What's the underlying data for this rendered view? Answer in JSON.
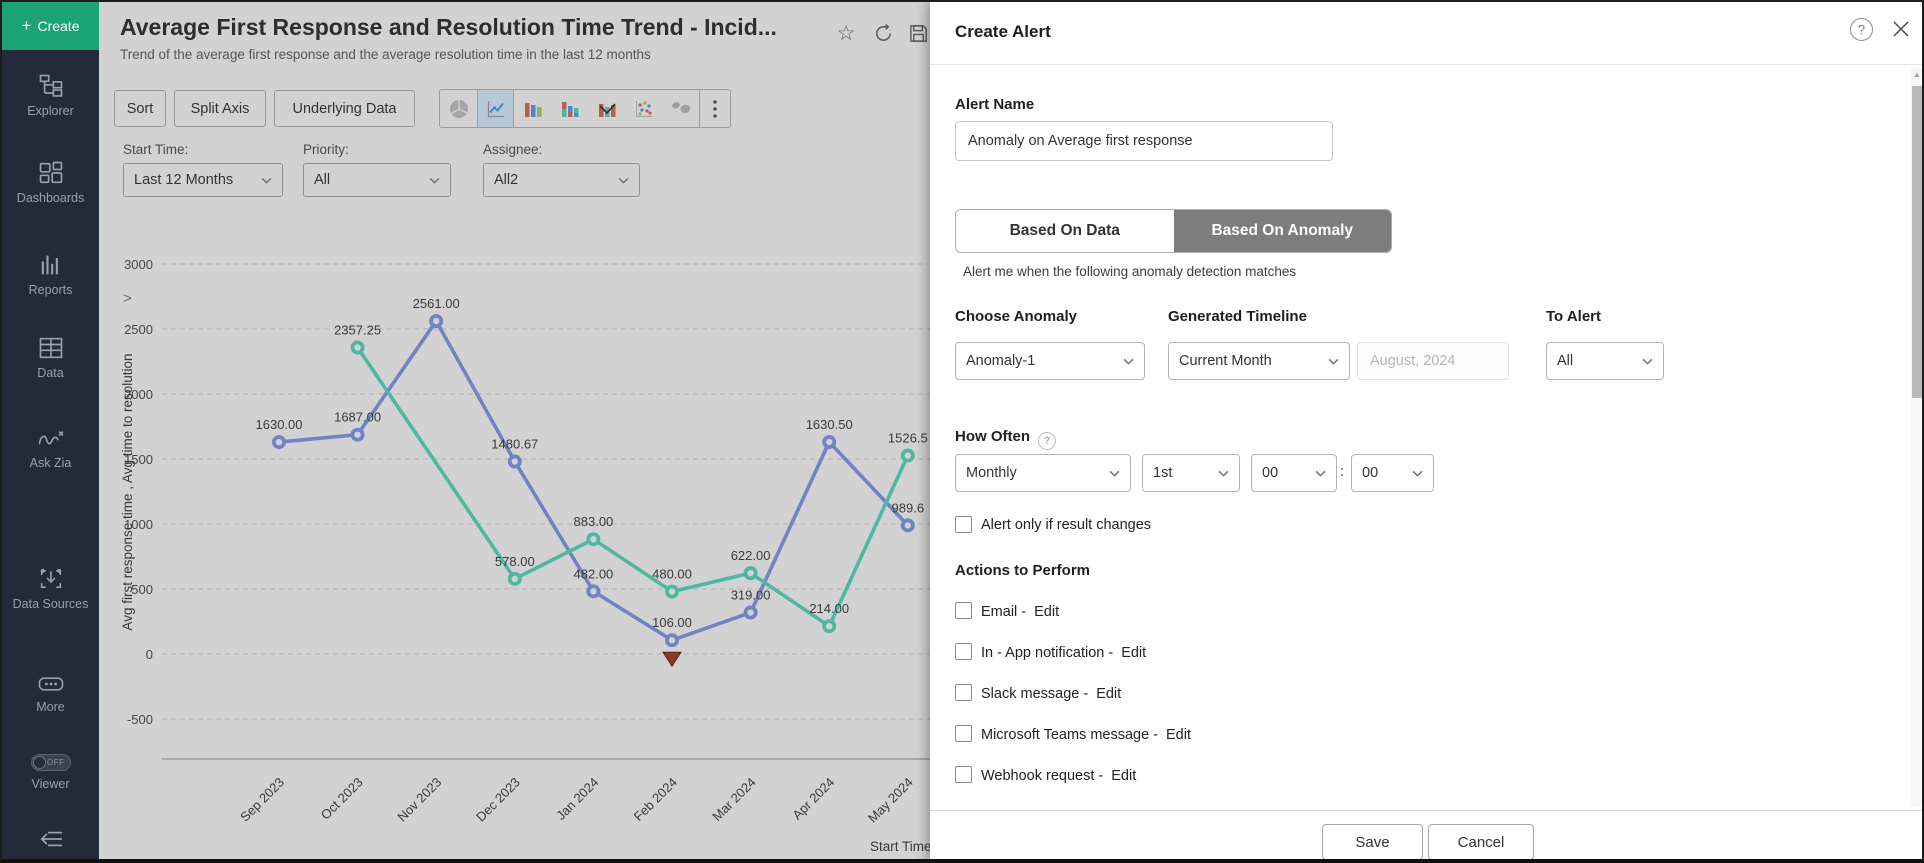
{
  "sidebar": {
    "create_label": "Create",
    "items": [
      {
        "label": "Explorer"
      },
      {
        "label": "Dashboards"
      },
      {
        "label": "Reports"
      },
      {
        "label": "Data"
      },
      {
        "label": "Ask Zia"
      },
      {
        "label": "Data Sources"
      },
      {
        "label": "More"
      }
    ],
    "viewer_label": "Viewer",
    "viewer_off": "OFF"
  },
  "report": {
    "title": "Average First Response and Resolution Time Trend - Incid...",
    "subtitle": "Trend of the average first response and the average resolution time in the last 12 months",
    "toolbar_buttons": [
      {
        "label": "Sort"
      },
      {
        "label": "Split Axis"
      },
      {
        "label": "Underlying Data"
      }
    ],
    "filters": [
      {
        "label": "Start Time:",
        "value": "Last 12 Months"
      },
      {
        "label": "Priority:",
        "value": "All"
      },
      {
        "label": "Assignee:",
        "value": "All2"
      }
    ],
    "expand_chevron": ">"
  },
  "chart_data": {
    "type": "line",
    "categories": [
      "Sep 2023",
      "Oct 2023",
      "Nov 2023",
      "Dec 2023",
      "Jan 2024",
      "Feb 2024",
      "Mar 2024",
      "Apr 2024",
      "May 2024"
    ],
    "series": [
      {
        "name": "Avg first response time",
        "color": "#6f83c5",
        "values": [
          1630.0,
          1687.0,
          2561.0,
          1480.67,
          482.0,
          106.0,
          319.0,
          1630.5,
          989.6
        ],
        "labels": [
          "1630.00",
          "1687.00",
          "2561.00",
          "1480.67",
          "482.00",
          "106.00",
          "319.00",
          "1630.50",
          "989.6"
        ]
      },
      {
        "name": "Avg time to resolution",
        "color": "#4fb8a0",
        "values": [
          null,
          2357.25,
          null,
          578.0,
          883.0,
          480.0,
          622.0,
          214.0,
          1526.5
        ],
        "labels": [
          "",
          "2357.25",
          "",
          "578.00",
          "883.00",
          "480.00",
          "622.00",
          "214.00",
          "1526.5"
        ]
      }
    ],
    "ylabel": "Avg first response time , Avg time to resolution",
    "xlabel": "Start Time",
    "ylim": [
      -500,
      3000
    ],
    "yticks": [
      3000,
      2500,
      2000,
      1500,
      1000,
      500,
      0,
      -500
    ],
    "grid": "dashed",
    "anomaly": {
      "category": "Feb 2024",
      "series": "Avg first response time",
      "color": "#8b3b1e"
    }
  },
  "modal": {
    "title": "Create Alert",
    "alert_name_label": "Alert Name",
    "alert_name_value": "Anomaly on Average first response",
    "tabs": [
      {
        "label": "Based On Data",
        "active": false
      },
      {
        "label": "Based On Anomaly",
        "active": true
      }
    ],
    "caption": "Alert me when the following anomaly detection matches",
    "choose_anomaly": {
      "label": "Choose Anomaly",
      "value": "Anomaly-1"
    },
    "generated_timeline": {
      "label": "Generated Timeline",
      "value": "Current Month",
      "detail": "August, 2024"
    },
    "to_alert": {
      "label": "To Alert",
      "value": "All"
    },
    "how_often": {
      "label": "How Often",
      "help": "?",
      "frequency": "Monthly",
      "day": "1st",
      "hour": "00",
      "separator": ":",
      "minute": "00"
    },
    "alert_only_label": "Alert only if result changes",
    "actions_label": "Actions to Perform",
    "actions": [
      {
        "label": "Email -",
        "edit": "Edit"
      },
      {
        "label": "In - App notification -",
        "edit": "Edit"
      },
      {
        "label": "Slack message -",
        "edit": "Edit"
      },
      {
        "label": "Microsoft Teams message -",
        "edit": "Edit"
      },
      {
        "label": "Webhook request -",
        "edit": "Edit"
      }
    ],
    "save_label": "Save",
    "cancel_label": "Cancel",
    "header_help": "?"
  }
}
